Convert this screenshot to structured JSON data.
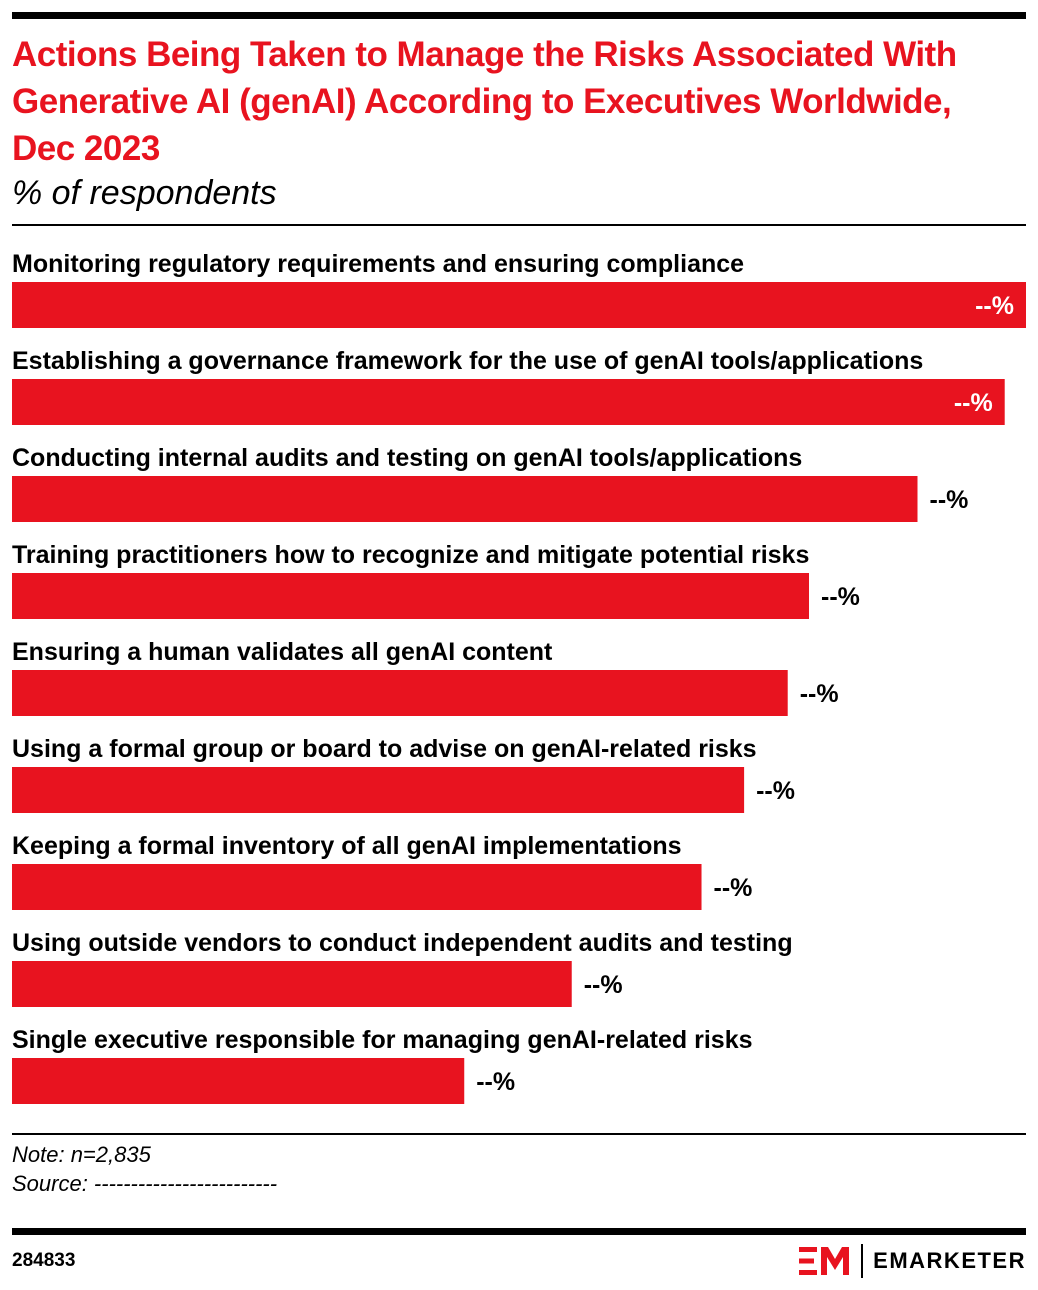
{
  "header": {
    "title": "Actions Being Taken to Manage the Risks Associated With Generative AI (genAI) According to Executives Worldwide, Dec 2023",
    "subtitle": "% of respondents"
  },
  "chart_data": {
    "type": "bar",
    "orientation": "horizontal",
    "categories": [
      "Monitoring regulatory requirements and ensuring compliance",
      "Establishing a governance framework for the use of genAI tools/applications",
      "Conducting internal audits and testing on genAI tools/applications",
      "Training practitioners how to recognize and mitigate potential risks",
      "Ensuring a human validates all genAI content",
      "Using a formal group or board to advise on genAI-related risks",
      "Keeping a formal inventory of all genAI implementations",
      "Using outside vendors to conduct independent audits and testing",
      "Single executive responsible for managing genAI-related risks"
    ],
    "values": [
      100,
      97.9,
      89.3,
      78.6,
      76.5,
      72.2,
      68.0,
      55.2,
      44.6
    ],
    "value_labels": [
      "--%",
      "--%",
      "--%",
      "--%",
      "--%",
      "--%",
      "--%",
      "--%",
      "--%"
    ],
    "xlim": [
      0,
      100
    ],
    "grid": false,
    "legend": "none",
    "bar_color": "#e8131f"
  },
  "footer": {
    "note": "Note: n=2,835",
    "source": "Source: -------------------------",
    "chart_id": "284833",
    "brand": "EMARKETER"
  },
  "colors": {
    "accent": "#e8131f",
    "text": "#000000",
    "background": "#ffffff"
  }
}
